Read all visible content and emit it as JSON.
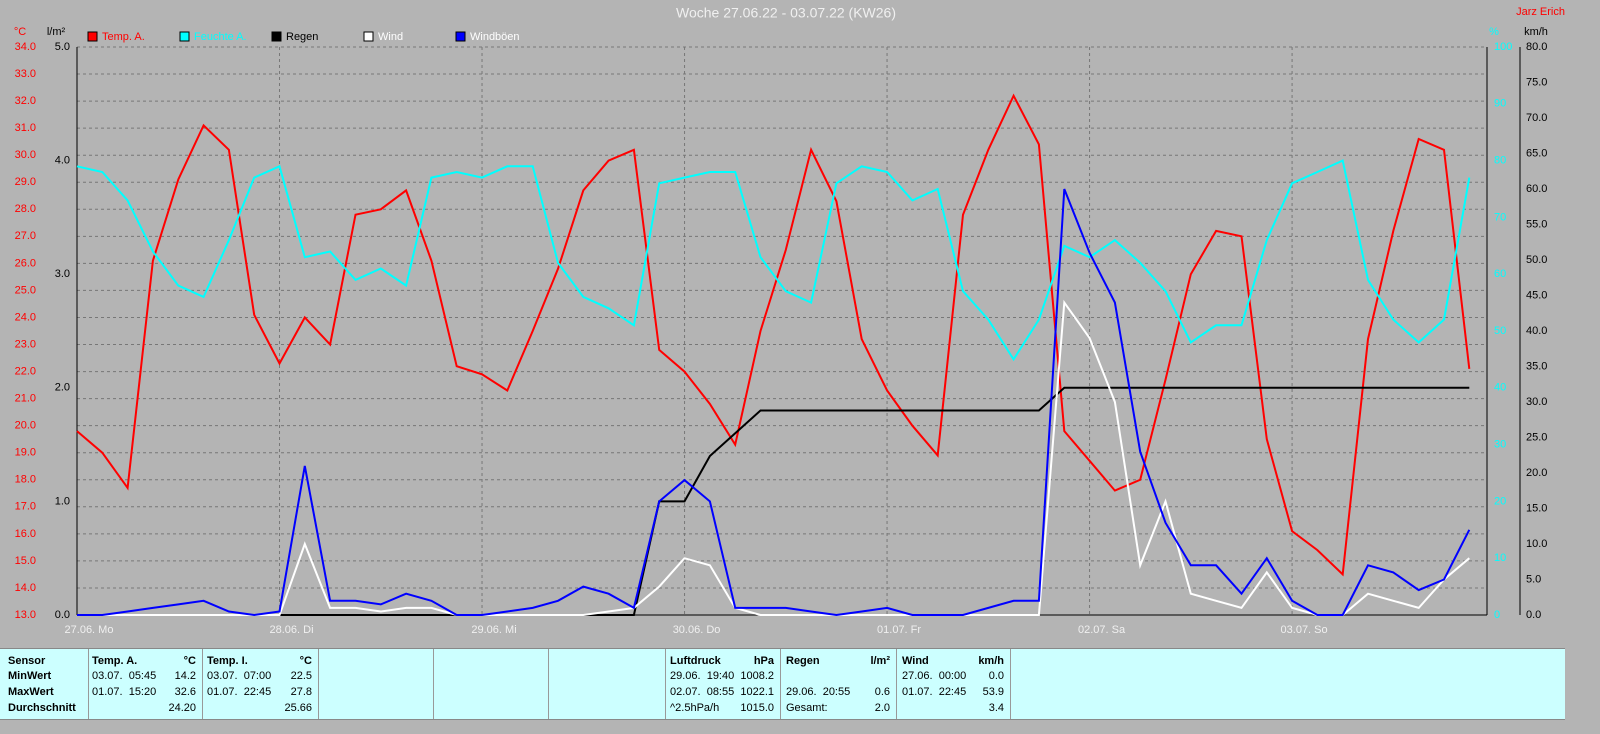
{
  "title": "Woche 27.06.22 - 03.07.22 (KW26)",
  "author": "Jarz Erich",
  "chart_data": {
    "type": "line",
    "grid": true,
    "xlim": [
      0,
      55.7
    ],
    "xticks": [
      {
        "value": 0,
        "label": "27.06.  Mo"
      },
      {
        "value": 8,
        "label": "28.06.  Di"
      },
      {
        "value": 16,
        "label": "29.06.  Mi"
      },
      {
        "value": 24,
        "label": "30.06.  Do"
      },
      {
        "value": 32,
        "label": "01.07.  Fr"
      },
      {
        "value": 40,
        "label": "02.07.  Sa"
      },
      {
        "value": 48,
        "label": "03.07.  So"
      }
    ],
    "ylabel": "°C",
    "ylim": [
      13,
      34
    ],
    "yticks": [
      {
        "value": 13,
        "label": "13.0"
      },
      {
        "value": 14,
        "label": "14.0"
      },
      {
        "value": 15,
        "label": "15.0"
      },
      {
        "value": 16,
        "label": "16.0"
      },
      {
        "value": 17,
        "label": "17.0"
      },
      {
        "value": 18,
        "label": "18.0"
      },
      {
        "value": 19,
        "label": "19.0"
      },
      {
        "value": 20,
        "label": "20.0"
      },
      {
        "value": 21,
        "label": "21.0"
      },
      {
        "value": 22,
        "label": "22.0"
      },
      {
        "value": 23,
        "label": "23.0"
      },
      {
        "value": 24,
        "label": "24.0"
      },
      {
        "value": 25,
        "label": "25.0"
      },
      {
        "value": 26,
        "label": "26.0"
      },
      {
        "value": 27,
        "label": "27.0"
      },
      {
        "value": 28,
        "label": "28.0"
      },
      {
        "value": 29,
        "label": "29.0"
      },
      {
        "value": 30,
        "label": "30.0"
      },
      {
        "value": 31,
        "label": "31.0"
      },
      {
        "value": 32,
        "label": "32.0"
      },
      {
        "value": 33,
        "label": "33.0"
      },
      {
        "value": 34,
        "label": "34.0"
      }
    ],
    "y2label": "l/m²",
    "y2lim": [
      0,
      5
    ],
    "y2ticks": [
      {
        "value": 0,
        "label": "0.0"
      },
      {
        "value": 1,
        "label": "1.0"
      },
      {
        "value": 2,
        "label": "2.0"
      },
      {
        "value": 3,
        "label": "3.0"
      },
      {
        "value": 4,
        "label": "4.0"
      },
      {
        "value": 5,
        "label": "5.0"
      }
    ],
    "y3label": "%",
    "y3lim": [
      0,
      100
    ],
    "y3ticks": [
      0,
      10,
      20,
      30,
      40,
      50,
      60,
      70,
      80,
      90,
      100
    ],
    "y4label": "km/h",
    "y4lim": [
      0,
      80
    ],
    "y4ticks": [
      {
        "value": 0,
        "label": "0.0"
      },
      {
        "value": 5,
        "label": "5.0"
      },
      {
        "value": 10,
        "label": "10.0"
      },
      {
        "value": 15,
        "label": "15.0"
      },
      {
        "value": 20,
        "label": "20.0"
      },
      {
        "value": 25,
        "label": "25.0"
      },
      {
        "value": 30,
        "label": "30.0"
      },
      {
        "value": 35,
        "label": "35.0"
      },
      {
        "value": 40,
        "label": "40.0"
      },
      {
        "value": 45,
        "label": "45.0"
      },
      {
        "value": 50,
        "label": "50.0"
      },
      {
        "value": 55,
        "label": "55.0"
      },
      {
        "value": 60,
        "label": "60.0"
      },
      {
        "value": 65,
        "label": "65.0"
      },
      {
        "value": 70,
        "label": "70.0"
      },
      {
        "value": 75,
        "label": "75.0"
      },
      {
        "value": 80,
        "label": "80.0"
      }
    ],
    "series": [
      {
        "name": "Temp. A.",
        "color": "#ff0000",
        "axis": "y",
        "values": [
          19.8,
          19.0,
          17.7,
          26.1,
          29.1,
          31.1,
          30.2,
          24.1,
          22.3,
          24.0,
          23.0,
          27.8,
          28.0,
          28.7,
          26.1,
          22.2,
          21.9,
          21.3,
          23.5,
          25.8,
          28.7,
          29.8,
          30.2,
          22.8,
          22.0,
          20.8,
          19.3,
          23.5,
          26.5,
          30.2,
          28.3,
          23.2,
          21.3,
          20.0,
          18.9,
          27.8,
          30.2,
          32.2,
          30.4,
          19.8,
          18.7,
          17.6,
          18.0,
          21.7,
          25.6,
          27.2,
          27.0,
          19.5,
          16.1,
          15.4,
          14.5,
          23.2,
          27.2,
          30.6,
          30.2,
          22.1
        ]
      },
      {
        "name": "Feuchte A.",
        "color": "#00ffff",
        "axis": "y3",
        "values": [
          79,
          78,
          73,
          64,
          58,
          56,
          66,
          77,
          79,
          63,
          64,
          59,
          61,
          58,
          77,
          78,
          77,
          79,
          79,
          62,
          56,
          54,
          51,
          76,
          77,
          78,
          78,
          63,
          57,
          55,
          76,
          79,
          78,
          73,
          75,
          57,
          52,
          45,
          52,
          65,
          63,
          66,
          62,
          57,
          48,
          51,
          51,
          66,
          76,
          78,
          80,
          59,
          52,
          48,
          52,
          77
        ]
      },
      {
        "name": "Regen",
        "color": "#000000",
        "axis": "y2",
        "values": [
          0,
          0,
          0,
          0,
          0,
          0,
          0,
          0,
          0,
          0,
          0,
          0,
          0,
          0,
          0,
          0,
          0,
          0,
          0,
          0,
          0,
          0,
          0,
          1.0,
          1.0,
          1.4,
          1.6,
          1.8,
          1.8,
          1.8,
          1.8,
          1.8,
          1.8,
          1.8,
          1.8,
          1.8,
          1.8,
          1.8,
          1.8,
          2.0,
          2.0,
          2.0,
          2.0,
          2.0,
          2.0,
          2.0,
          2.0,
          2.0,
          2.0,
          2.0,
          2.0,
          2.0,
          2.0,
          2.0,
          2.0,
          2.0
        ]
      },
      {
        "name": "Wind",
        "color": "#ffffff",
        "axis": "y4",
        "values": [
          0,
          0,
          0,
          0,
          0,
          0,
          0,
          0,
          0,
          10,
          1,
          1,
          0.5,
          1,
          1,
          0,
          0,
          0,
          0,
          0,
          0,
          0.5,
          1,
          4,
          8,
          7,
          1,
          0,
          0,
          0,
          0,
          0,
          0,
          0,
          0,
          0,
          0,
          0,
          0,
          44,
          39,
          30,
          7,
          16,
          3,
          2,
          1,
          6,
          1,
          0,
          0,
          3,
          2,
          1,
          5,
          8
        ]
      },
      {
        "name": "Windböen",
        "color": "#0000ff",
        "axis": "y4",
        "values": [
          0,
          0,
          0.5,
          1,
          1.5,
          2,
          0.5,
          0,
          0.5,
          21,
          2,
          2,
          1.5,
          3,
          2,
          0,
          0,
          0.5,
          1,
          2,
          4,
          3,
          1,
          16,
          19,
          16,
          1,
          1,
          1,
          0.5,
          0,
          0.5,
          1,
          0,
          0,
          0,
          1,
          2,
          2,
          60,
          51,
          44,
          23,
          13,
          7,
          7,
          3,
          8,
          2,
          0,
          0,
          7,
          6,
          3.5,
          5,
          12
        ]
      }
    ]
  },
  "table": {
    "row_labels": [
      "Sensor",
      "MinWert",
      "MaxWert",
      "Durchschnitt"
    ],
    "columns": [
      {
        "name": "Temp. A.",
        "unit": "°C",
        "rows": [
          {
            "left": "03.07.  05:45",
            "right": "14.2"
          },
          {
            "left": "01.07.  15:20",
            "right": "32.6"
          },
          {
            "right": "24.20"
          }
        ]
      },
      {
        "name": "Temp. I.",
        "unit": "°C",
        "rows": [
          {
            "left": "03.07.  07:00",
            "right": "22.5"
          },
          {
            "left": "01.07.  22:45",
            "right": "27.8"
          },
          {
            "right": "25.66"
          }
        ]
      },
      {
        "name": "Luftdruck",
        "unit": "hPa",
        "rows": [
          {
            "left": "29.06.  19:40",
            "right": "1008.2"
          },
          {
            "left": "02.07.  08:55",
            "right": "1022.1"
          },
          {
            "left": "^2.5hPa/h",
            "right": "1015.0"
          }
        ]
      },
      {
        "name": "Regen",
        "unit": "l/m²",
        "rows": [
          {},
          {
            "left": "29.06.  20:55",
            "right": "0.6"
          },
          {
            "left": "Gesamt:",
            "right": "2.0"
          }
        ]
      },
      {
        "name": "Wind",
        "unit": "km/h",
        "rows": [
          {
            "left": "27.06.  00:00",
            "right": "0.0"
          },
          {
            "left": "01.07.  22:45",
            "right": "53.9"
          },
          {
            "right": "3.4"
          }
        ]
      }
    ]
  }
}
